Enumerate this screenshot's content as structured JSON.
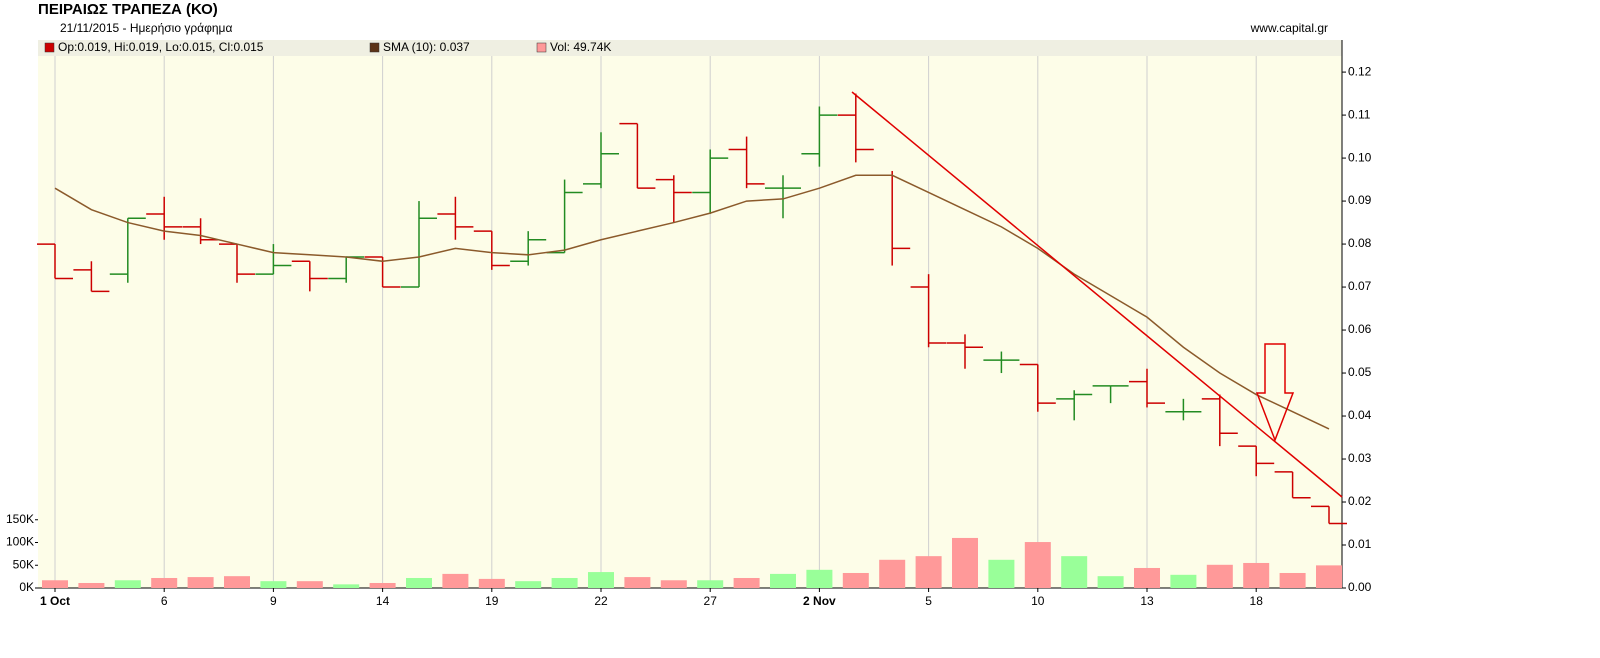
{
  "chart_data": {
    "type": "ohlc",
    "title": "ΠΕΙΡΑΙΩΣ ΤΡΑΠΕΖΑ (ΚΟ)",
    "subtitle": "21/11/2015 - Ημερήσιο γράφημα",
    "source": "www.capital.gr",
    "legend": [
      {
        "text": "Op:0.019, Hi:0.019, Lo:0.015, Cl:0.015",
        "color": "#cc0000"
      },
      {
        "text": "SMA (10): 0.037",
        "color": "#5c3317"
      },
      {
        "text": "Vol: 49.74K",
        "color": "#ff9999"
      }
    ],
    "categories": [
      "1 Oct",
      null,
      null,
      "6",
      null,
      null,
      "9",
      null,
      null,
      "14",
      null,
      null,
      "19",
      null,
      null,
      "22",
      null,
      null,
      "27",
      null,
      null,
      "2 Nov",
      null,
      null,
      "5",
      null,
      null,
      "10",
      null,
      null,
      "13",
      null,
      null,
      "18",
      null,
      null
    ],
    "open": [
      0.08,
      0.074,
      0.073,
      0.087,
      0.084,
      0.08,
      0.073,
      0.076,
      0.072,
      0.077,
      0.07,
      0.087,
      0.083,
      0.076,
      0.078,
      0.094,
      0.108,
      0.095,
      0.092,
      0.102,
      0.093,
      0.101,
      0.11,
      0.096,
      0.07,
      0.057,
      0.053,
      0.052,
      0.044,
      0.047,
      0.048,
      0.041,
      0.044,
      0.033,
      0.027,
      0.019
    ],
    "high": [
      0.08,
      0.076,
      0.086,
      0.091,
      0.086,
      0.08,
      0.08,
      0.076,
      0.077,
      0.077,
      0.09,
      0.091,
      0.083,
      0.083,
      0.095,
      0.106,
      0.108,
      0.096,
      0.102,
      0.105,
      0.096,
      0.112,
      0.115,
      0.097,
      0.073,
      0.059,
      0.055,
      0.052,
      0.046,
      0.047,
      0.051,
      0.044,
      0.045,
      0.033,
      0.027,
      0.019
    ],
    "low": [
      0.072,
      0.069,
      0.071,
      0.081,
      0.08,
      0.071,
      0.073,
      0.069,
      0.071,
      0.07,
      0.07,
      0.081,
      0.074,
      0.075,
      0.078,
      0.093,
      0.093,
      0.085,
      0.087,
      0.093,
      0.086,
      0.098,
      0.099,
      0.075,
      0.056,
      0.051,
      0.05,
      0.041,
      0.039,
      0.043,
      0.042,
      0.039,
      0.033,
      0.026,
      0.021,
      0.015
    ],
    "close": [
      0.072,
      0.069,
      0.086,
      0.084,
      0.081,
      0.073,
      0.075,
      0.072,
      0.077,
      0.07,
      0.086,
      0.084,
      0.075,
      0.081,
      0.092,
      0.101,
      0.093,
      0.092,
      0.1,
      0.094,
      0.093,
      0.11,
      0.102,
      0.079,
      0.057,
      0.056,
      0.053,
      0.043,
      0.045,
      0.047,
      0.043,
      0.041,
      0.036,
      0.029,
      0.021,
      0.015
    ],
    "up_color": "#228b22",
    "down_color": "#cc0000",
    "sma": {
      "color": "#8b5a2b",
      "values": [
        0.093,
        0.088,
        0.085,
        0.083,
        0.082,
        0.08,
        0.078,
        0.0775,
        0.077,
        0.076,
        0.077,
        0.079,
        0.078,
        0.0775,
        0.0786,
        0.081,
        0.083,
        0.085,
        0.0872,
        0.09,
        0.0905,
        0.093,
        0.096,
        0.096,
        0.092,
        0.088,
        0.084,
        0.079,
        0.073,
        0.068,
        0.063,
        0.056,
        0.05,
        0.045,
        0.041,
        0.037
      ]
    },
    "volume": {
      "up_color": "#99ff99",
      "down_color": "#ff9999",
      "axis": "y2",
      "values": [
        17000,
        11000,
        17000,
        22000,
        24000,
        26000,
        15000,
        15000,
        8000,
        11000,
        22000,
        31000,
        20000,
        15000,
        22000,
        35000,
        24000,
        17000,
        17000,
        22000,
        31000,
        40000,
        33000,
        62000,
        70000,
        110000,
        62000,
        101000,
        70000,
        26000,
        44000,
        29000,
        51000,
        55000,
        33000,
        49740
      ]
    },
    "ylim": [
      0,
      0.127
    ],
    "yticks": [
      {
        "value": 0,
        "label": "0.00"
      },
      0.01,
      0.02,
      0.03,
      0.04,
      0.05,
      0.06,
      0.07,
      0.08,
      0.09,
      {
        "value": 0.1,
        "label": "0.10"
      },
      0.11,
      0.12
    ],
    "y2lim": [
      0,
      1200000
    ],
    "y2ticks": [
      {
        "value": 0,
        "label": "0K"
      },
      {
        "value": 50000,
        "label": "50K"
      },
      {
        "value": 100000,
        "label": "100K"
      },
      {
        "value": 150000,
        "label": "150K"
      }
    ],
    "grid": "x",
    "background": "#fdfde8"
  }
}
